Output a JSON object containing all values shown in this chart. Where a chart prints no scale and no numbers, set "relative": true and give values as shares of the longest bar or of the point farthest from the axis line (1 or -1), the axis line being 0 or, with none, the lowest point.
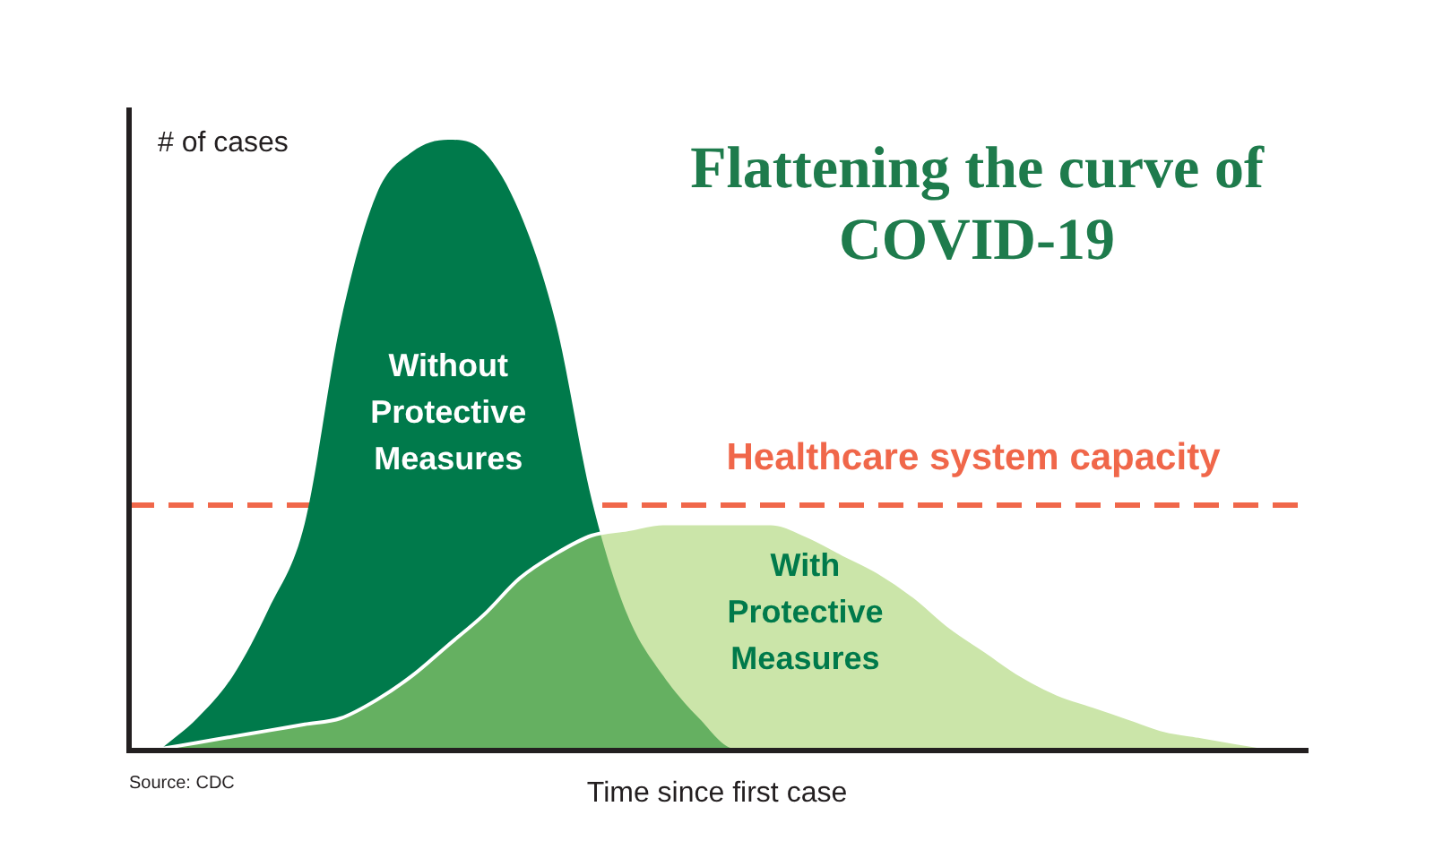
{
  "chart_data": {
    "type": "area",
    "relative": true,
    "title": "Flattening the curve of COVID-19",
    "xlabel": "Time since first case",
    "ylabel": "# of cases",
    "legend": false,
    "categories": [
      null,
      null,
      null,
      null,
      null,
      null,
      null,
      null,
      null,
      null,
      null,
      null,
      null,
      null,
      null,
      null,
      null,
      null,
      null,
      null,
      null,
      null,
      null,
      null,
      null,
      null,
      null,
      null,
      null,
      null,
      null,
      null
    ],
    "series": [
      {
        "name": "Without Protective Measures",
        "color": "#007a4b",
        "values": [
          0,
          0.05,
          0.12,
          0.23,
          0.37,
          0.7,
          0.91,
          0.98,
          1,
          0.98,
          0.88,
          0.7,
          0.41,
          0.22,
          0.12,
          0.05,
          0,
          0,
          0,
          0,
          0,
          0,
          0,
          0,
          0,
          0,
          0,
          0,
          0,
          0,
          0,
          0
        ]
      },
      {
        "name": "With Protective Measures",
        "color": "#a8d46f",
        "values": [
          0,
          0.01,
          0.02,
          0.03,
          0.04,
          0.05,
          0.08,
          0.12,
          0.17,
          0.22,
          0.28,
          0.32,
          0.35,
          0.36,
          0.37,
          0.37,
          0.37,
          0.37,
          0.35,
          0.32,
          0.29,
          0.25,
          0.2,
          0.16,
          0.12,
          0.09,
          0.07,
          0.05,
          0.03,
          0.02,
          0.01,
          0
        ]
      }
    ],
    "ref_lines": [
      {
        "axis": "y",
        "value": 0.4,
        "label": "Healthcare system capacity",
        "color": "#f0674a",
        "line_style": "dashed"
      }
    ],
    "annotations": [
      "Source: CDC"
    ]
  }
}
